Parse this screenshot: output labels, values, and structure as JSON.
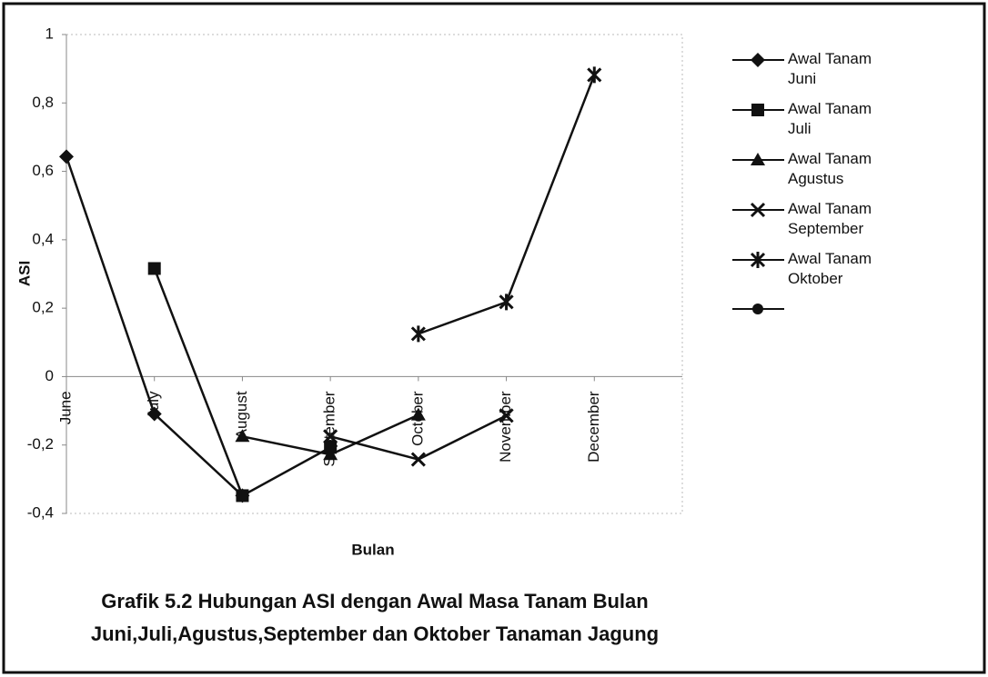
{
  "chart_data": {
    "type": "line",
    "caption": [
      "Grafik 5.2 Hubungan ASI dengan Awal Masa Tanam Bulan",
      "Juni,Juli,Agustus,September dan Oktober Tanaman Jagung"
    ],
    "x_label": "Bulan",
    "y_label": "ASI",
    "categories": [
      "June",
      "July",
      "August",
      "September",
      "October",
      "November",
      "December"
    ],
    "series": [
      {
        "name": "Awal Tanam Juni",
        "marker": "diamond",
        "color": "#111",
        "values": [
          0.643,
          -0.109,
          -0.348,
          null,
          null,
          null,
          null
        ]
      },
      {
        "name": "Awal Tanam Juli",
        "marker": "square",
        "color": "#111",
        "values": [
          null,
          0.316,
          -0.348,
          -0.207,
          null,
          null,
          null
        ]
      },
      {
        "name": "Awal Tanam Agustus",
        "marker": "triangle",
        "color": "#111",
        "values": [
          null,
          null,
          -0.175,
          -0.228,
          -0.112,
          null,
          null
        ]
      },
      {
        "name": "Awal Tanam September",
        "marker": "x",
        "color": "#111",
        "values": [
          null,
          null,
          null,
          -0.175,
          -0.242,
          -0.114,
          null
        ]
      },
      {
        "name": "Awal Tanam Oktober",
        "marker": "star",
        "color": "#111",
        "values": [
          null,
          null,
          null,
          null,
          0.125,
          0.218,
          0.882
        ]
      }
    ],
    "ylim": [
      -0.4,
      1
    ],
    "yticks": [
      {
        "value": -0.4,
        "label": "-0,4"
      },
      {
        "value": -0.2,
        "label": "-0,2"
      },
      0,
      {
        "value": 0.2,
        "label": "0,2"
      },
      {
        "value": 0.4,
        "label": "0,4"
      },
      {
        "value": 0.6,
        "label": "0,6"
      },
      {
        "value": 0.8,
        "label": "0,8"
      },
      1
    ],
    "grid": false,
    "legend": "right"
  }
}
